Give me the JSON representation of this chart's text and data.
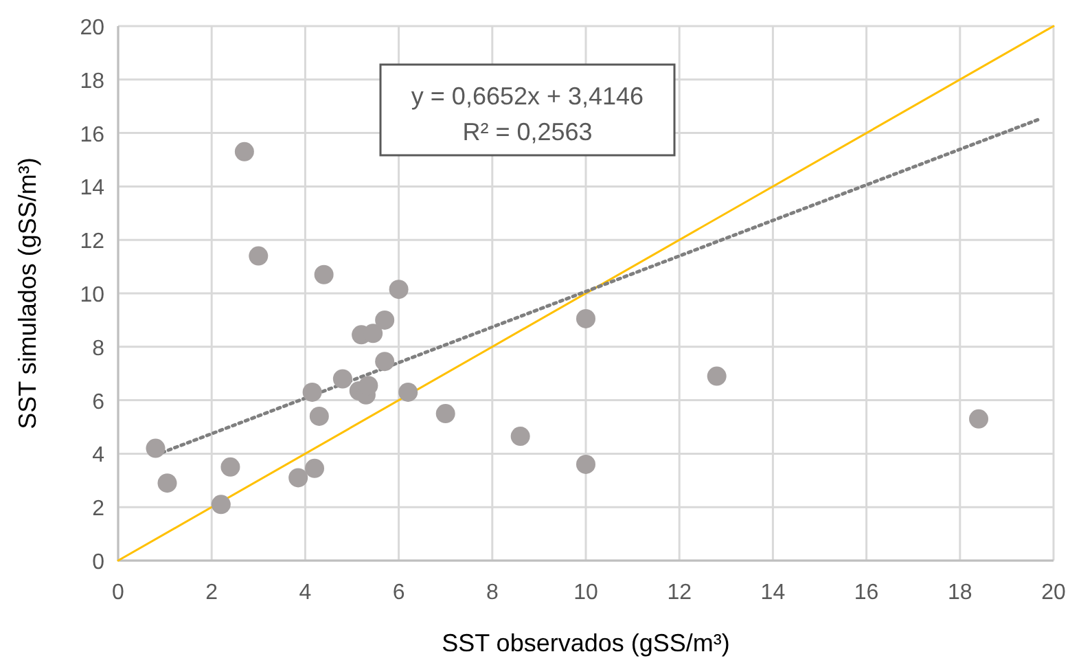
{
  "chart_data": {
    "type": "scatter",
    "xlabel": "SST observados (gSS/m³)",
    "ylabel": "SST simulados (gSS/m³)",
    "xlim": [
      0,
      20
    ],
    "ylim": [
      0,
      20
    ],
    "xticks": [
      0,
      2,
      4,
      6,
      8,
      10,
      12,
      14,
      16,
      18,
      20
    ],
    "yticks": [
      0,
      2,
      4,
      6,
      8,
      10,
      12,
      14,
      16,
      18,
      20
    ],
    "grid": true,
    "marker": "circle",
    "annotations": [
      "y = 0,6652x + 3,4146",
      "R² = 0,2563"
    ],
    "series": [
      {
        "color": "#a5a0a0",
        "x": [
          0.8,
          1.05,
          2.2,
          2.4,
          2.7,
          3.0,
          3.85,
          4.15,
          4.2,
          4.3,
          4.4,
          4.8,
          5.15,
          5.2,
          5.3,
          5.35,
          5.45,
          5.7,
          5.7,
          6.0,
          6.2,
          7.0,
          8.6,
          10.0,
          10.0,
          12.8,
          18.4
        ],
        "values": [
          4.2,
          2.9,
          2.1,
          3.5,
          15.3,
          11.4,
          3.1,
          6.3,
          3.45,
          5.4,
          10.7,
          6.8,
          6.35,
          8.45,
          6.2,
          6.55,
          8.5,
          9.0,
          7.45,
          10.15,
          6.3,
          5.5,
          4.65,
          9.05,
          3.6,
          6.9,
          5.3
        ]
      },
      {
        "type": "line",
        "color": "#ffc000",
        "line_style": "solid",
        "marker": "none",
        "x": [
          0,
          20
        ],
        "values": [
          0,
          20
        ]
      },
      {
        "type": "line",
        "color": "#7f7f7f",
        "line_style": "dotted",
        "marker": "none",
        "x": [
          0.8,
          19.7
        ],
        "values": [
          3.95,
          16.52
        ]
      }
    ]
  }
}
